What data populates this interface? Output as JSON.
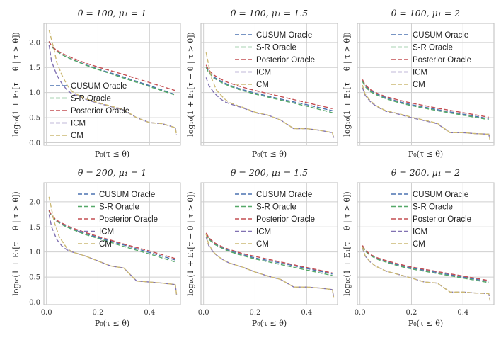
{
  "figure": {
    "xlabel": "P₀(τ ≤ θ)",
    "ylabel": "log₁₀(1 + E₁[τ − θ | τ > θ])"
  },
  "colors": {
    "CUSUM Oracle": "#4c72b0",
    "S-R Oracle": "#55a868",
    "Posterior Oracle": "#c44e52",
    "ICM": "#8172b2",
    "CM": "#ccb974"
  },
  "chart_data": [
    {
      "type": "line",
      "title": "θ = 100, μ₁ = 1",
      "xlim": [
        -0.01,
        0.52
      ],
      "ylim": [
        -0.05,
        2.38
      ],
      "xticks": [
        0.0,
        0.2,
        0.4
      ],
      "yticks": [
        0.0,
        0.5,
        1.0,
        1.5,
        2.0
      ],
      "show_xticklabels": false,
      "show_yticklabels": true,
      "legend_loc": "lower-left",
      "series": [
        {
          "name": "CUSUM Oracle",
          "x": [
            0.01,
            0.02,
            0.04,
            0.07,
            0.1,
            0.15,
            0.2,
            0.3,
            0.4,
            0.5
          ],
          "y": [
            2.02,
            1.92,
            1.82,
            1.73,
            1.66,
            1.56,
            1.47,
            1.31,
            1.14,
            0.96
          ]
        },
        {
          "name": "S-R Oracle",
          "x": [
            0.01,
            0.02,
            0.04,
            0.07,
            0.1,
            0.15,
            0.2,
            0.3,
            0.4,
            0.5
          ],
          "y": [
            2.02,
            1.92,
            1.82,
            1.73,
            1.66,
            1.55,
            1.46,
            1.29,
            1.12,
            0.95
          ]
        },
        {
          "name": "Posterior Oracle",
          "x": [
            0.01,
            0.02,
            0.04,
            0.07,
            0.1,
            0.15,
            0.2,
            0.3,
            0.4,
            0.5
          ],
          "y": [
            2.02,
            1.93,
            1.84,
            1.76,
            1.69,
            1.59,
            1.51,
            1.36,
            1.2,
            1.04
          ]
        },
        {
          "name": "ICM",
          "x": [
            0.01,
            0.02,
            0.04,
            0.06,
            0.08,
            0.1,
            0.13,
            0.15,
            0.18,
            0.2,
            0.25,
            0.28,
            0.3,
            0.35,
            0.4,
            0.45,
            0.5,
            0.505
          ],
          "y": [
            1.95,
            1.62,
            1.35,
            1.18,
            1.05,
            0.97,
            0.92,
            0.87,
            0.82,
            0.79,
            0.72,
            0.68,
            0.65,
            0.5,
            0.4,
            0.38,
            0.3,
            0.15
          ]
        },
        {
          "name": "CM",
          "x": [
            0.01,
            0.02,
            0.03,
            0.04,
            0.06,
            0.08,
            0.1,
            0.13,
            0.15,
            0.18,
            0.2,
            0.25,
            0.28,
            0.3,
            0.35,
            0.4,
            0.45,
            0.5,
            0.505
          ],
          "y": [
            2.25,
            2.05,
            1.85,
            1.6,
            1.35,
            1.15,
            1.02,
            0.93,
            0.88,
            0.83,
            0.8,
            0.73,
            0.69,
            0.66,
            0.5,
            0.4,
            0.38,
            0.3,
            0.15
          ]
        }
      ]
    },
    {
      "type": "line",
      "title": "θ = 100, μ₁ = 1.5",
      "xlim": [
        -0.01,
        0.52
      ],
      "ylim": [
        -0.05,
        2.38
      ],
      "xticks": [
        0.0,
        0.2,
        0.4
      ],
      "yticks": [
        0.0,
        0.5,
        1.0,
        1.5,
        2.0
      ],
      "show_xticklabels": false,
      "show_yticklabels": false,
      "legend_loc": "upper-right",
      "series": [
        {
          "name": "CUSUM Oracle",
          "x": [
            0.01,
            0.02,
            0.04,
            0.07,
            0.1,
            0.15,
            0.2,
            0.3,
            0.4,
            0.5
          ],
          "y": [
            1.52,
            1.42,
            1.31,
            1.22,
            1.15,
            1.06,
            0.99,
            0.87,
            0.76,
            0.64
          ]
        },
        {
          "name": "S-R Oracle",
          "x": [
            0.01,
            0.02,
            0.04,
            0.07,
            0.1,
            0.15,
            0.2,
            0.3,
            0.4,
            0.5
          ],
          "y": [
            1.5,
            1.4,
            1.29,
            1.2,
            1.13,
            1.04,
            0.97,
            0.85,
            0.73,
            0.6
          ]
        },
        {
          "name": "Posterior Oracle",
          "x": [
            0.01,
            0.02,
            0.04,
            0.07,
            0.1,
            0.15,
            0.2,
            0.3,
            0.4,
            0.5
          ],
          "y": [
            1.55,
            1.45,
            1.35,
            1.26,
            1.19,
            1.11,
            1.04,
            0.92,
            0.8,
            0.68
          ]
        },
        {
          "name": "ICM",
          "x": [
            0.01,
            0.02,
            0.04,
            0.06,
            0.08,
            0.1,
            0.15,
            0.2,
            0.25,
            0.3,
            0.35,
            0.4,
            0.45,
            0.5,
            0.505
          ],
          "y": [
            1.3,
            1.15,
            1.0,
            0.9,
            0.82,
            0.78,
            0.7,
            0.6,
            0.55,
            0.45,
            0.28,
            0.28,
            0.25,
            0.2,
            0.1
          ]
        },
        {
          "name": "CM",
          "x": [
            0.01,
            0.02,
            0.03,
            0.05,
            0.08,
            0.1,
            0.15,
            0.2,
            0.25,
            0.3,
            0.35,
            0.4,
            0.45,
            0.5,
            0.505
          ],
          "y": [
            1.8,
            1.55,
            1.3,
            1.05,
            0.88,
            0.8,
            0.71,
            0.61,
            0.55,
            0.45,
            0.28,
            0.28,
            0.25,
            0.2,
            0.1
          ]
        }
      ]
    },
    {
      "type": "line",
      "title": "θ = 100, μ₁ = 2",
      "xlim": [
        -0.01,
        0.52
      ],
      "ylim": [
        -0.05,
        2.38
      ],
      "xticks": [
        0.0,
        0.2,
        0.4
      ],
      "yticks": [
        0.0,
        0.5,
        1.0,
        1.5,
        2.0
      ],
      "show_xticklabels": false,
      "show_yticklabels": false,
      "legend_loc": "upper-right",
      "series": [
        {
          "name": "CUSUM Oracle",
          "x": [
            0.01,
            0.02,
            0.04,
            0.07,
            0.1,
            0.15,
            0.2,
            0.3,
            0.4,
            0.5
          ],
          "y": [
            1.24,
            1.14,
            1.04,
            0.96,
            0.9,
            0.82,
            0.76,
            0.66,
            0.57,
            0.48
          ]
        },
        {
          "name": "S-R Oracle",
          "x": [
            0.01,
            0.02,
            0.04,
            0.07,
            0.1,
            0.15,
            0.2,
            0.3,
            0.4,
            0.5
          ],
          "y": [
            1.22,
            1.12,
            1.02,
            0.94,
            0.88,
            0.8,
            0.74,
            0.64,
            0.55,
            0.46
          ]
        },
        {
          "name": "Posterior Oracle",
          "x": [
            0.01,
            0.02,
            0.04,
            0.07,
            0.1,
            0.15,
            0.2,
            0.3,
            0.4,
            0.5
          ],
          "y": [
            1.26,
            1.16,
            1.06,
            0.98,
            0.92,
            0.85,
            0.79,
            0.69,
            0.6,
            0.51
          ]
        },
        {
          "name": "ICM",
          "x": [
            0.01,
            0.02,
            0.04,
            0.06,
            0.08,
            0.1,
            0.15,
            0.2,
            0.25,
            0.3,
            0.35,
            0.4,
            0.45,
            0.5,
            0.505
          ],
          "y": [
            1.1,
            0.95,
            0.82,
            0.74,
            0.68,
            0.63,
            0.57,
            0.5,
            0.44,
            0.38,
            0.2,
            0.2,
            0.18,
            0.17,
            0.05
          ]
        },
        {
          "name": "CM",
          "x": [
            0.01,
            0.02,
            0.04,
            0.06,
            0.08,
            0.1,
            0.15,
            0.2,
            0.25,
            0.3,
            0.35,
            0.4,
            0.45,
            0.5,
            0.505
          ],
          "y": [
            1.15,
            0.97,
            0.84,
            0.75,
            0.69,
            0.64,
            0.58,
            0.51,
            0.45,
            0.39,
            0.2,
            0.2,
            0.18,
            0.17,
            0.05
          ]
        }
      ]
    },
    {
      "type": "line",
      "title": "θ = 200, μ₁ = 1",
      "xlim": [
        -0.01,
        0.52
      ],
      "ylim": [
        -0.05,
        2.38
      ],
      "xticks": [
        0.0,
        0.2,
        0.4
      ],
      "yticks": [
        0.0,
        0.5,
        1.0,
        1.5,
        2.0
      ],
      "show_xticklabels": true,
      "show_yticklabels": true,
      "legend_loc": "upper-right",
      "series": [
        {
          "name": "CUSUM Oracle",
          "x": [
            0.01,
            0.02,
            0.04,
            0.07,
            0.1,
            0.15,
            0.2,
            0.3,
            0.4,
            0.5
          ],
          "y": [
            1.82,
            1.72,
            1.62,
            1.53,
            1.46,
            1.37,
            1.29,
            1.14,
            0.99,
            0.84
          ]
        },
        {
          "name": "S-R Oracle",
          "x": [
            0.01,
            0.02,
            0.04,
            0.07,
            0.1,
            0.15,
            0.2,
            0.3,
            0.4,
            0.5
          ],
          "y": [
            1.82,
            1.72,
            1.61,
            1.52,
            1.45,
            1.35,
            1.27,
            1.11,
            0.96,
            0.8
          ]
        },
        {
          "name": "Posterior Oracle",
          "x": [
            0.01,
            0.02,
            0.04,
            0.07,
            0.1,
            0.15,
            0.2,
            0.3,
            0.4,
            0.5
          ],
          "y": [
            1.83,
            1.73,
            1.63,
            1.55,
            1.48,
            1.39,
            1.31,
            1.16,
            1.02,
            0.87
          ]
        },
        {
          "name": "ICM",
          "x": [
            0.01,
            0.02,
            0.04,
            0.06,
            0.08,
            0.1,
            0.15,
            0.2,
            0.25,
            0.3,
            0.35,
            0.4,
            0.45,
            0.5,
            0.505
          ],
          "y": [
            1.75,
            1.5,
            1.25,
            1.12,
            1.04,
            1.0,
            0.92,
            0.82,
            0.72,
            0.68,
            0.42,
            0.4,
            0.38,
            0.35,
            0.15
          ]
        },
        {
          "name": "CM",
          "x": [
            0.01,
            0.02,
            0.03,
            0.05,
            0.08,
            0.1,
            0.15,
            0.2,
            0.25,
            0.3,
            0.35,
            0.4,
            0.45,
            0.5,
            0.505
          ],
          "y": [
            2.1,
            1.85,
            1.6,
            1.3,
            1.07,
            1.0,
            0.92,
            0.82,
            0.72,
            0.68,
            0.42,
            0.4,
            0.38,
            0.35,
            0.15
          ]
        }
      ]
    },
    {
      "type": "line",
      "title": "θ = 200, μ₁ = 1.5",
      "xlim": [
        -0.01,
        0.52
      ],
      "ylim": [
        -0.05,
        2.38
      ],
      "xticks": [
        0.0,
        0.2,
        0.4
      ],
      "yticks": [
        0.0,
        0.5,
        1.0,
        1.5,
        2.0
      ],
      "show_xticklabels": true,
      "show_yticklabels": false,
      "legend_loc": "upper-right",
      "series": [
        {
          "name": "CUSUM Oracle",
          "x": [
            0.01,
            0.02,
            0.04,
            0.07,
            0.1,
            0.15,
            0.2,
            0.3,
            0.4,
            0.5
          ],
          "y": [
            1.36,
            1.27,
            1.17,
            1.09,
            1.03,
            0.95,
            0.88,
            0.78,
            0.67,
            0.56
          ]
        },
        {
          "name": "S-R Oracle",
          "x": [
            0.01,
            0.02,
            0.04,
            0.07,
            0.1,
            0.15,
            0.2,
            0.3,
            0.4,
            0.5
          ],
          "y": [
            1.35,
            1.26,
            1.16,
            1.08,
            1.01,
            0.93,
            0.86,
            0.75,
            0.64,
            0.53
          ]
        },
        {
          "name": "Posterior Oracle",
          "x": [
            0.01,
            0.02,
            0.04,
            0.07,
            0.1,
            0.15,
            0.2,
            0.3,
            0.4,
            0.5
          ],
          "y": [
            1.38,
            1.29,
            1.19,
            1.11,
            1.05,
            0.97,
            0.91,
            0.8,
            0.69,
            0.58
          ]
        },
        {
          "name": "ICM",
          "x": [
            0.01,
            0.02,
            0.04,
            0.06,
            0.08,
            0.1,
            0.15,
            0.2,
            0.25,
            0.3,
            0.35,
            0.4,
            0.45,
            0.5,
            0.505
          ],
          "y": [
            1.3,
            1.13,
            0.98,
            0.9,
            0.83,
            0.78,
            0.7,
            0.6,
            0.52,
            0.45,
            0.3,
            0.3,
            0.28,
            0.25,
            0.1
          ]
        },
        {
          "name": "CM",
          "x": [
            0.01,
            0.02,
            0.04,
            0.06,
            0.08,
            0.1,
            0.15,
            0.2,
            0.25,
            0.3,
            0.35,
            0.4,
            0.45,
            0.5,
            0.505
          ],
          "y": [
            1.35,
            1.15,
            0.99,
            0.9,
            0.83,
            0.78,
            0.7,
            0.6,
            0.52,
            0.45,
            0.3,
            0.3,
            0.28,
            0.25,
            0.1
          ]
        }
      ]
    },
    {
      "type": "line",
      "title": "θ = 200, μ₁ = 2",
      "xlim": [
        -0.01,
        0.52
      ],
      "ylim": [
        -0.05,
        2.38
      ],
      "xticks": [
        0.0,
        0.2,
        0.4
      ],
      "yticks": [
        0.0,
        0.5,
        1.0,
        1.5,
        2.0
      ],
      "show_xticklabels": true,
      "show_yticklabels": false,
      "legend_loc": "upper-right",
      "series": [
        {
          "name": "CUSUM Oracle",
          "x": [
            0.01,
            0.02,
            0.04,
            0.07,
            0.1,
            0.15,
            0.2,
            0.3,
            0.4,
            0.5
          ],
          "y": [
            1.12,
            1.03,
            0.94,
            0.87,
            0.81,
            0.74,
            0.68,
            0.59,
            0.5,
            0.41
          ]
        },
        {
          "name": "S-R Oracle",
          "x": [
            0.01,
            0.02,
            0.04,
            0.07,
            0.1,
            0.15,
            0.2,
            0.3,
            0.4,
            0.5
          ],
          "y": [
            1.11,
            1.02,
            0.93,
            0.85,
            0.8,
            0.72,
            0.66,
            0.57,
            0.48,
            0.39
          ]
        },
        {
          "name": "Posterior Oracle",
          "x": [
            0.01,
            0.02,
            0.04,
            0.07,
            0.1,
            0.15,
            0.2,
            0.3,
            0.4,
            0.5
          ],
          "y": [
            1.13,
            1.04,
            0.95,
            0.88,
            0.83,
            0.76,
            0.7,
            0.61,
            0.52,
            0.43
          ]
        },
        {
          "name": "ICM",
          "x": [
            0.01,
            0.02,
            0.04,
            0.06,
            0.08,
            0.1,
            0.15,
            0.2,
            0.25,
            0.3,
            0.35,
            0.4,
            0.45,
            0.5,
            0.505
          ],
          "y": [
            1.08,
            0.92,
            0.8,
            0.72,
            0.67,
            0.62,
            0.55,
            0.48,
            0.4,
            0.38,
            0.2,
            0.2,
            0.18,
            0.17,
            0.03
          ]
        },
        {
          "name": "CM",
          "x": [
            0.01,
            0.02,
            0.04,
            0.06,
            0.08,
            0.1,
            0.15,
            0.2,
            0.25,
            0.3,
            0.35,
            0.4,
            0.45,
            0.5,
            0.505
          ],
          "y": [
            1.1,
            0.93,
            0.8,
            0.72,
            0.67,
            0.62,
            0.55,
            0.48,
            0.4,
            0.38,
            0.2,
            0.2,
            0.18,
            0.17,
            0.03
          ]
        }
      ]
    }
  ]
}
